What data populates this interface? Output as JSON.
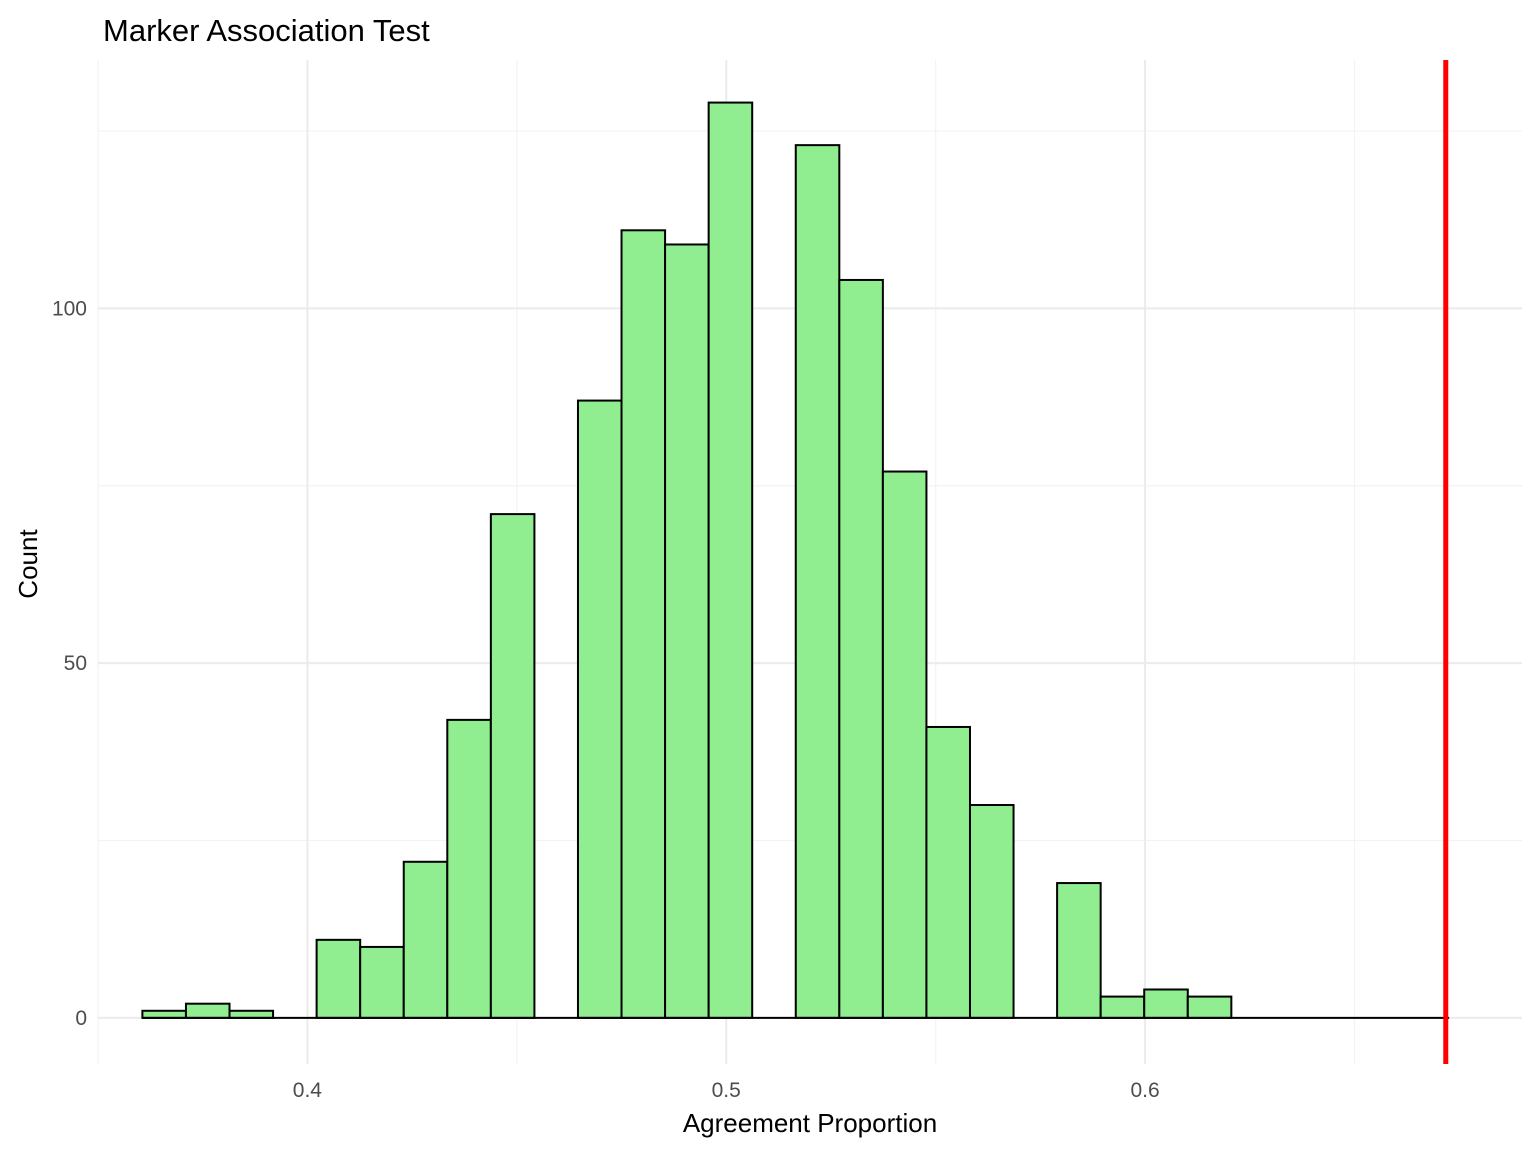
{
  "chart_data": {
    "type": "bar",
    "subtype": "histogram",
    "title": "Marker Association Test",
    "xlabel": "Agreement Proportion",
    "ylabel": "Count",
    "xlim": [
      0.35,
      0.69
    ],
    "ylim": [
      -6.5,
      135
    ],
    "x_ticks": [
      0.4,
      0.5,
      0.6
    ],
    "x_tick_labels": [
      "0.4",
      "0.5",
      "0.6"
    ],
    "y_ticks": [
      0,
      50,
      100
    ],
    "y_tick_labels": [
      "0",
      "50",
      "100"
    ],
    "grid": true,
    "bin_width": 0.0104,
    "bins_start": [
      0.3606,
      0.371,
      0.3814,
      0.3918,
      0.4022,
      0.4126,
      0.423,
      0.4334,
      0.4438,
      0.4542,
      0.4646,
      0.475,
      0.4854,
      0.4958,
      0.5062,
      0.5166,
      0.527,
      0.5374,
      0.5478,
      0.5582,
      0.5686,
      0.579,
      0.5894,
      0.5998,
      0.6102,
      0.6206,
      0.631,
      0.6414,
      0.6518,
      0.6622
    ],
    "counts": [
      1,
      2,
      1,
      0,
      11,
      10,
      22,
      42,
      71,
      0,
      87,
      111,
      109,
      129,
      0,
      123,
      104,
      77,
      41,
      30,
      0,
      19,
      3,
      4,
      3,
      0,
      0,
      0,
      0,
      0
    ],
    "reference_line": {
      "x": 0.6718,
      "color": "#ff0000"
    },
    "colors": {
      "bar_fill": "#90ee90",
      "bar_stroke": "#000000",
      "reference": "#ff0000"
    }
  }
}
